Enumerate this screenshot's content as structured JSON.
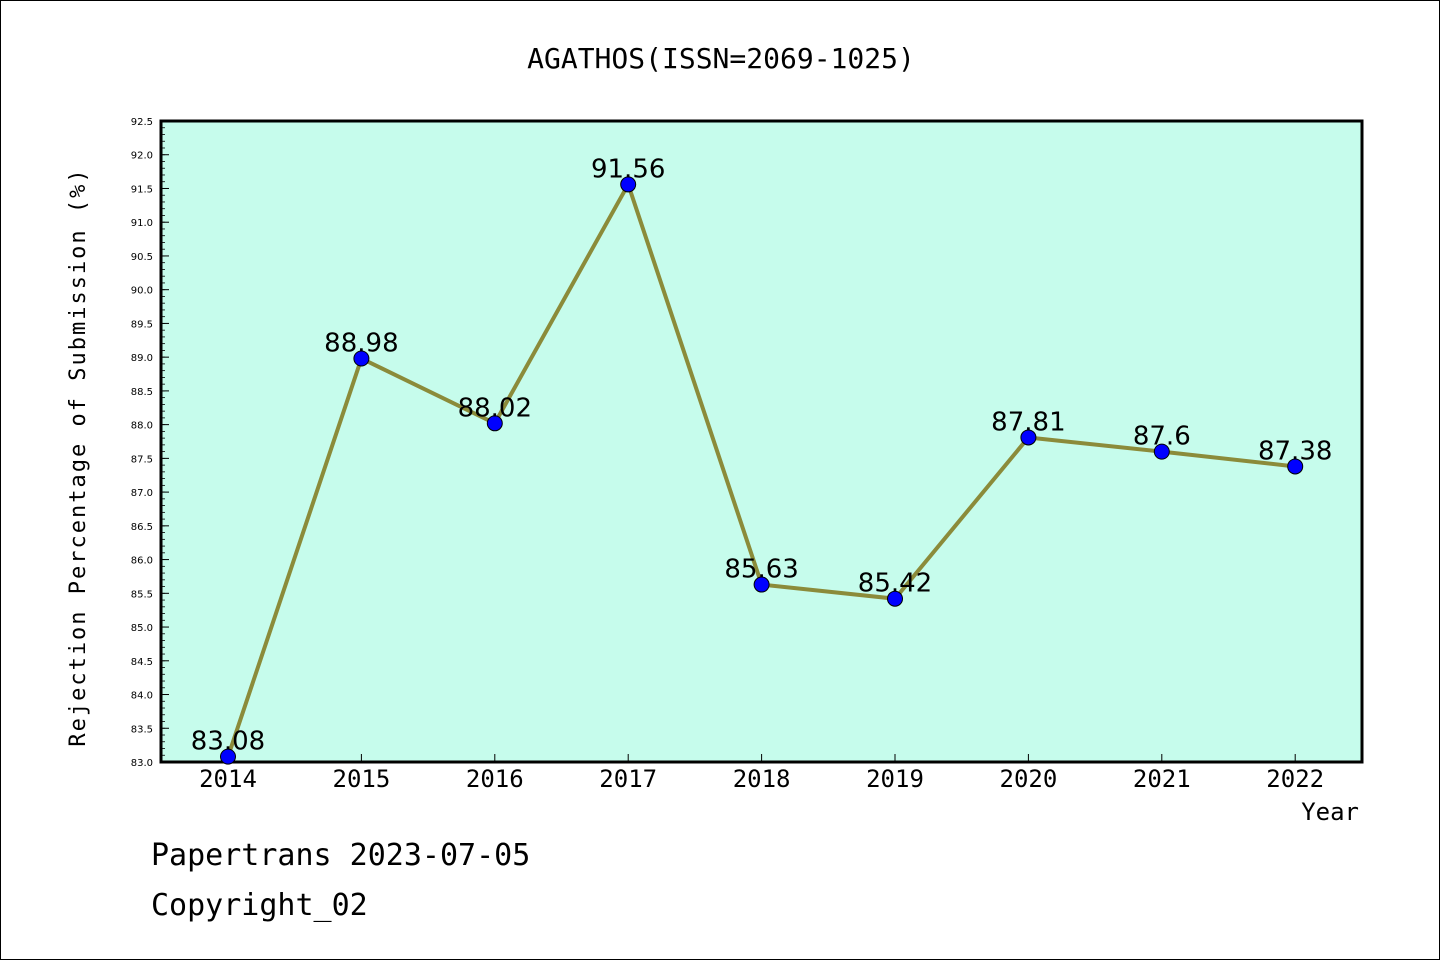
{
  "chart_data": {
    "type": "line",
    "title": "AGATHOS(ISSN=2069-1025)",
    "xlabel": "Year",
    "ylabel": "Rejection Percentage of Submission (%)",
    "categories": [
      "2014",
      "2015",
      "2016",
      "2017",
      "2018",
      "2019",
      "2020",
      "2021",
      "2022"
    ],
    "values": [
      83.08,
      88.98,
      88.02,
      91.56,
      85.63,
      85.42,
      87.81,
      87.6,
      87.38
    ],
    "data_labels": [
      "83.08",
      "88.98",
      "88.02",
      "91.56",
      "85.63",
      "85.42",
      "87.81",
      "87.6",
      "87.38"
    ],
    "ylim": [
      83.0,
      92.5
    ],
    "yticks": [
      "83.0",
      "83.5",
      "84.0",
      "84.5",
      "85.0",
      "85.5",
      "86.0",
      "86.5",
      "87.0",
      "87.5",
      "88.0",
      "88.5",
      "89.0",
      "89.5",
      "90.0",
      "90.5",
      "91.0",
      "91.5",
      "92.0",
      "92.5"
    ],
    "grid": false,
    "colors": {
      "plot_bg": "#c6fcec",
      "line": "#8b8b3a",
      "marker": "#0000ff"
    }
  },
  "footer": {
    "line1": "Papertrans 2023-07-05",
    "line2": "Copyright_02"
  }
}
